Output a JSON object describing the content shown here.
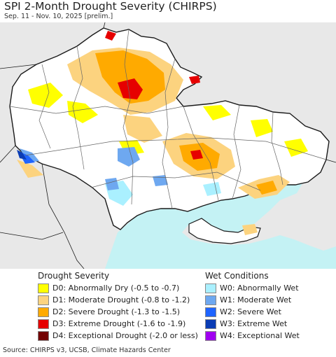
{
  "header": {
    "title": "SPI 2-Month Drought Severity (CHIRPS)",
    "subtitle": "Sep. 11 - Nov. 10, 2025 [prelim.]"
  },
  "map": {
    "colors": {
      "background": "#ffffff",
      "outside": "#e8e8e8",
      "sea": "#c4f2f4",
      "border": "#1a1a1a",
      "oblast": "#666666"
    }
  },
  "legend": {
    "drought": {
      "heading": "Drought Severity",
      "items": [
        {
          "label": "D0: Abnormally Dry (-0.5 to -0.7)",
          "color": "#ffff00"
        },
        {
          "label": "D1: Moderate Drought (-0.8 to -1.2)",
          "color": "#fcd37f"
        },
        {
          "label": "D2: Severe Drought (-1.3 to -1.5)",
          "color": "#ffaa00"
        },
        {
          "label": "D3: Extreme Drought (-1.6 to -1.9)",
          "color": "#e60000"
        },
        {
          "label": "D4: Exceptional Drought (-2.0 or less)",
          "color": "#730000"
        }
      ]
    },
    "wet": {
      "heading": "Wet Conditions",
      "items": [
        {
          "label": "W0: Abnormally Wet",
          "color": "#aaf0ff"
        },
        {
          "label": "W1: Moderate Wet",
          "color": "#6ea8f0"
        },
        {
          "label": "W2: Severe Wet",
          "color": "#1e64ff"
        },
        {
          "label": "W3: Extreme Wet",
          "color": "#0a3cb4"
        },
        {
          "label": "W4: Exceptional Wet",
          "color": "#a000f0"
        }
      ]
    }
  },
  "footer": {
    "source": "Source: CHIRPS v3, UCSB, Climate Hazards Center"
  }
}
